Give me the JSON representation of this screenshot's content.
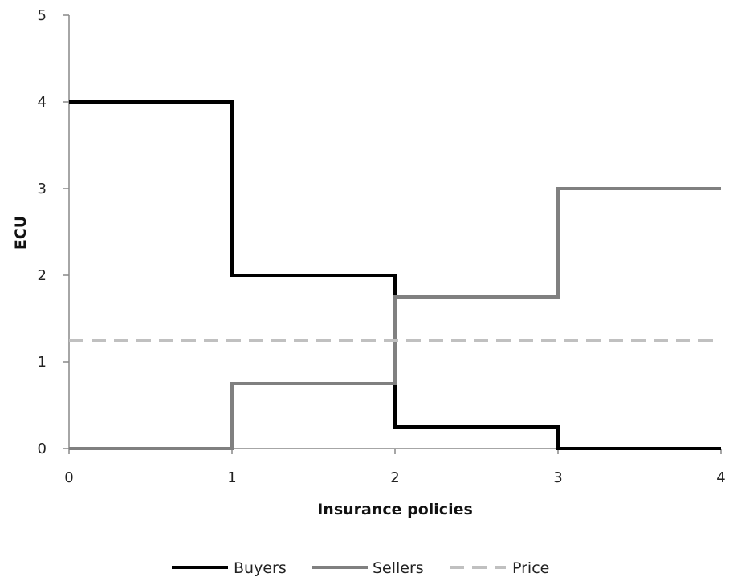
{
  "chart_data": {
    "type": "line",
    "title": "",
    "xlabel": "Insurance policies",
    "ylabel": "ECU",
    "xlim": [
      0,
      4
    ],
    "ylim": [
      0,
      5
    ],
    "x_ticks": [
      "0",
      "1",
      "2",
      "3",
      "4"
    ],
    "y_ticks": [
      "0",
      "1",
      "2",
      "3",
      "4",
      "5"
    ],
    "grid": false,
    "legend_position": "bottom",
    "series": [
      {
        "name": "Buyers",
        "color": "#000000",
        "style": "solid",
        "step": true,
        "points": [
          [
            0,
            4
          ],
          [
            1,
            4
          ],
          [
            1,
            2
          ],
          [
            2,
            2
          ],
          [
            2,
            0.25
          ],
          [
            3,
            0.25
          ],
          [
            3,
            0
          ],
          [
            4,
            0
          ]
        ]
      },
      {
        "name": "Sellers",
        "color": "#808080",
        "style": "solid",
        "step": true,
        "points": [
          [
            0,
            0
          ],
          [
            1,
            0
          ],
          [
            1,
            0.75
          ],
          [
            2,
            0.75
          ],
          [
            2,
            1.75
          ],
          [
            3,
            1.75
          ],
          [
            3,
            3
          ],
          [
            4,
            3
          ]
        ]
      },
      {
        "name": "Price",
        "color": "#c0c0c0",
        "style": "dashed",
        "step": false,
        "points": [
          [
            0,
            1.25
          ],
          [
            4,
            1.25
          ]
        ]
      }
    ]
  }
}
